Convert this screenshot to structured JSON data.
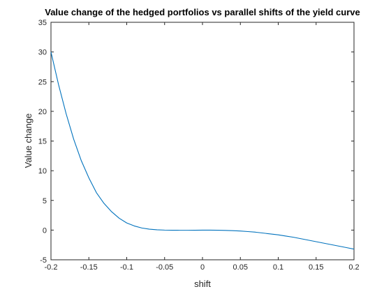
{
  "chart_data": {
    "type": "line",
    "title": "Value change of the hedged portfolios vs parallel shifts of the yield curve",
    "xlabel": "shift",
    "ylabel": "Value change",
    "xlim": [
      -0.2,
      0.2
    ],
    "ylim": [
      -5,
      35
    ],
    "xticks": [
      -0.2,
      -0.15,
      -0.1,
      -0.05,
      0,
      0.05,
      0.1,
      0.15,
      0.2
    ],
    "xtick_labels": [
      "-0.2",
      "-0.15",
      "-0.1",
      "-0.05",
      "0",
      "0.05",
      "0.1",
      "0.15",
      "0.2"
    ],
    "yticks": [
      -5,
      0,
      5,
      10,
      15,
      20,
      25,
      30,
      35
    ],
    "ytick_labels": [
      "-5",
      "0",
      "5",
      "10",
      "15",
      "20",
      "25",
      "30",
      "35"
    ],
    "grid": false,
    "line_color": "#0072BD",
    "axis_color": "#262626",
    "series": [
      {
        "x": [
          -0.2,
          -0.19,
          -0.18,
          -0.17,
          -0.16,
          -0.15,
          -0.14,
          -0.13,
          -0.12,
          -0.11,
          -0.1,
          -0.09,
          -0.08,
          -0.07,
          -0.06,
          -0.05,
          -0.04,
          -0.03,
          -0.02,
          -0.01,
          0,
          0.01,
          0.02,
          0.03,
          0.04,
          0.05,
          0.06,
          0.07,
          0.08,
          0.09,
          0.1,
          0.11,
          0.12,
          0.13,
          0.14,
          0.15,
          0.16,
          0.17,
          0.18,
          0.19,
          0.2
        ],
        "values": [
          30.0,
          24.5,
          19.6,
          15.3,
          11.7,
          8.8,
          6.3,
          4.5,
          3.1,
          2.0,
          1.2,
          0.7,
          0.35,
          0.15,
          0.05,
          0.0,
          -0.02,
          -0.03,
          -0.03,
          -0.02,
          -0.01,
          -0.01,
          -0.02,
          -0.05,
          -0.1,
          -0.15,
          -0.25,
          -0.35,
          -0.5,
          -0.65,
          -0.8,
          -1.0,
          -1.2,
          -1.45,
          -1.7,
          -1.95,
          -2.2,
          -2.45,
          -2.7,
          -2.95,
          -3.2
        ]
      }
    ]
  }
}
